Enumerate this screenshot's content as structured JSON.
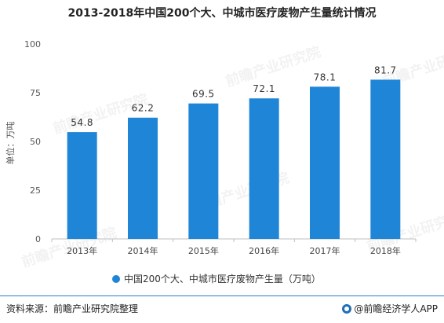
{
  "footer": {
    "source": "资料来源：前瞻产业研究院整理",
    "brand": "@前瞻经济学人APP"
  },
  "watermark": "前瞻产业研究院",
  "colors": {
    "bar": "#1f85d6",
    "axis": "#bfbfbf",
    "footer_line": "#2a7fc9"
  },
  "chart_data": {
    "type": "bar",
    "title": "2013-2018年中国200个大、中城市医疗废物产生量统计情况",
    "ylabel": "单位：万吨",
    "xlabel": "",
    "categories": [
      "2013年",
      "2014年",
      "2015年",
      "2016年",
      "2017年",
      "2018年"
    ],
    "series": [
      {
        "name": "中国200个大、中城市医疗废物产生量（万吨）",
        "values": [
          54.8,
          62.2,
          69.5,
          72.1,
          78.1,
          81.7
        ]
      }
    ],
    "data_labels": [
      "54.8",
      "62.2",
      "69.5",
      "72.1",
      "78.1",
      "81.7"
    ],
    "ylim": [
      0,
      100
    ],
    "yticks": [
      0,
      25,
      50,
      75,
      100
    ],
    "grid": false,
    "legend_position": "bottom"
  }
}
